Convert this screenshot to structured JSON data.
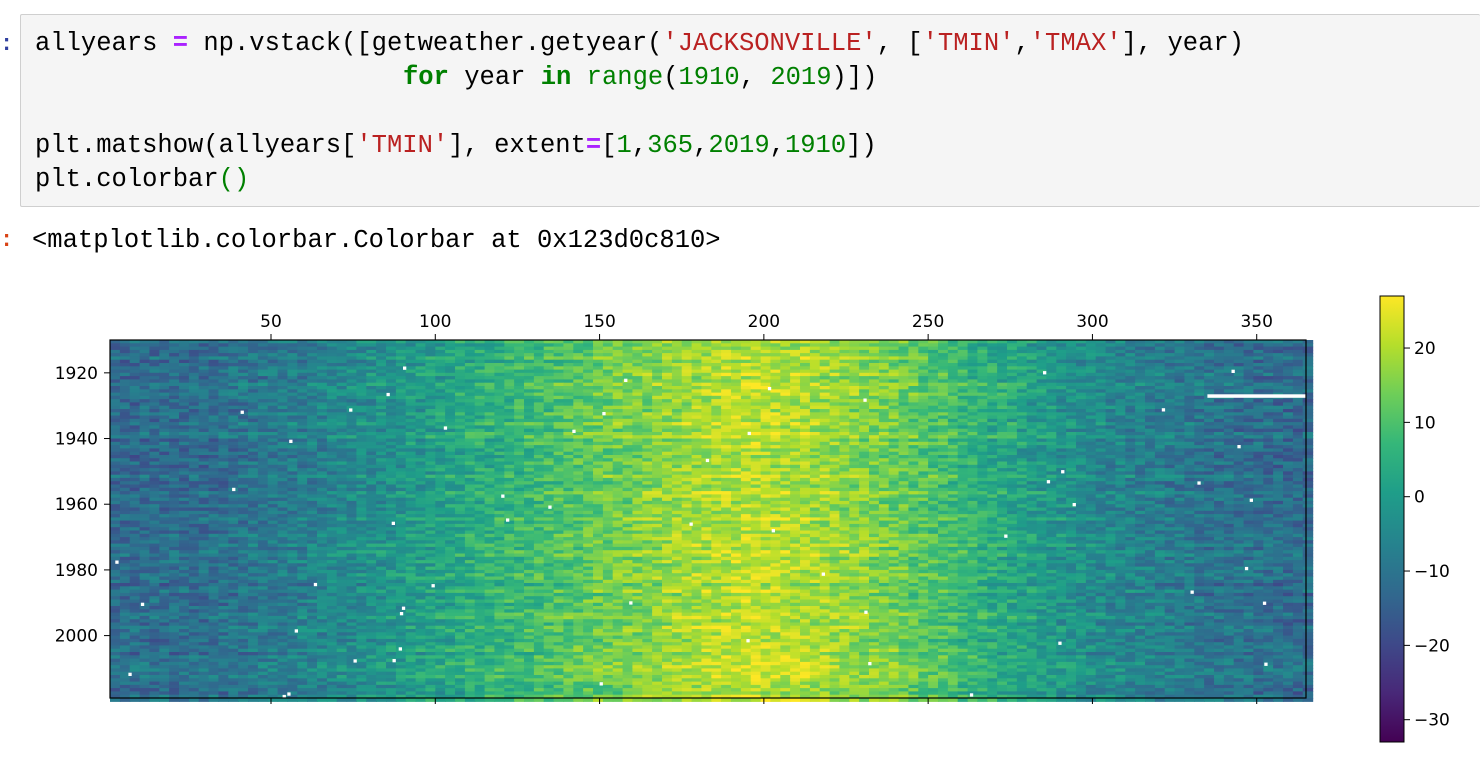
{
  "cell": {
    "in_prompt": ":",
    "out_prompt": ":",
    "code": {
      "l1_var": "allyears",
      "l1_op": "=",
      "l1_call_a": "np.vstack([getweather.getyear(",
      "l1_str1": "'JACKSONVILLE'",
      "l1_mid": ", [",
      "l1_str2": "'TMIN'",
      "l1_comma": ",",
      "l1_str3": "'TMAX'",
      "l1_end": "], year)",
      "l2_for": "for",
      "l2_year": " year ",
      "l2_in": "in",
      "l2_range": "range",
      "l2_open": "(",
      "l2_n1": "1910",
      "l2_comma": ", ",
      "l2_n2": "2019",
      "l2_close": ")",
      "l2_end": "])",
      "l4_call": "plt.matshow(allyears[",
      "l4_str": "'TMIN'",
      "l4_mid": "], extent",
      "l4_op": "=",
      "l4_bracket": "[",
      "l4_n1": "1",
      "l4_c1": ",",
      "l4_n2": "365",
      "l4_c2": ",",
      "l4_n3": "2019",
      "l4_c3": ",",
      "l4_n4": "1910",
      "l4_end": "])",
      "l5_call": "plt.colorbar",
      "l5_parens": "()"
    },
    "output": "<matplotlib.colorbar.Colorbar at 0x123d0c810>"
  },
  "colors": {
    "prompt_in": "#303f9f",
    "prompt_out": "#d84315",
    "viridis": [
      "#440154",
      "#482878",
      "#3e4989",
      "#31688e",
      "#26828e",
      "#1f9e89",
      "#35b779",
      "#6ece58",
      "#b5de2b",
      "#fde725"
    ]
  },
  "chart_data": {
    "type": "heatmap",
    "title": "",
    "x_range": [
      1,
      365
    ],
    "y_range": [
      1910,
      2019
    ],
    "y_inverted": true,
    "x_ticks": [
      "50",
      "100",
      "150",
      "200",
      "250",
      "300",
      "350"
    ],
    "y_ticks": [
      "1920",
      "1940",
      "1960",
      "1980",
      "2000"
    ],
    "colormap": "viridis",
    "colorbar": {
      "range": [
        -33,
        27
      ],
      "ticks": [
        "20",
        "10",
        "0",
        "−10",
        "−20",
        "−30"
      ]
    },
    "seasonal_profile": {
      "day": [
        1,
        30,
        60,
        90,
        120,
        150,
        180,
        195,
        210,
        240,
        270,
        300,
        330,
        365
      ],
      "tmin": [
        -12,
        -11,
        -7,
        -1,
        6,
        13,
        19,
        21,
        20,
        14,
        4,
        -4,
        -9,
        -12
      ]
    },
    "missing_segment": {
      "year": 1927,
      "day_start": 335,
      "day_end": 365
    }
  }
}
